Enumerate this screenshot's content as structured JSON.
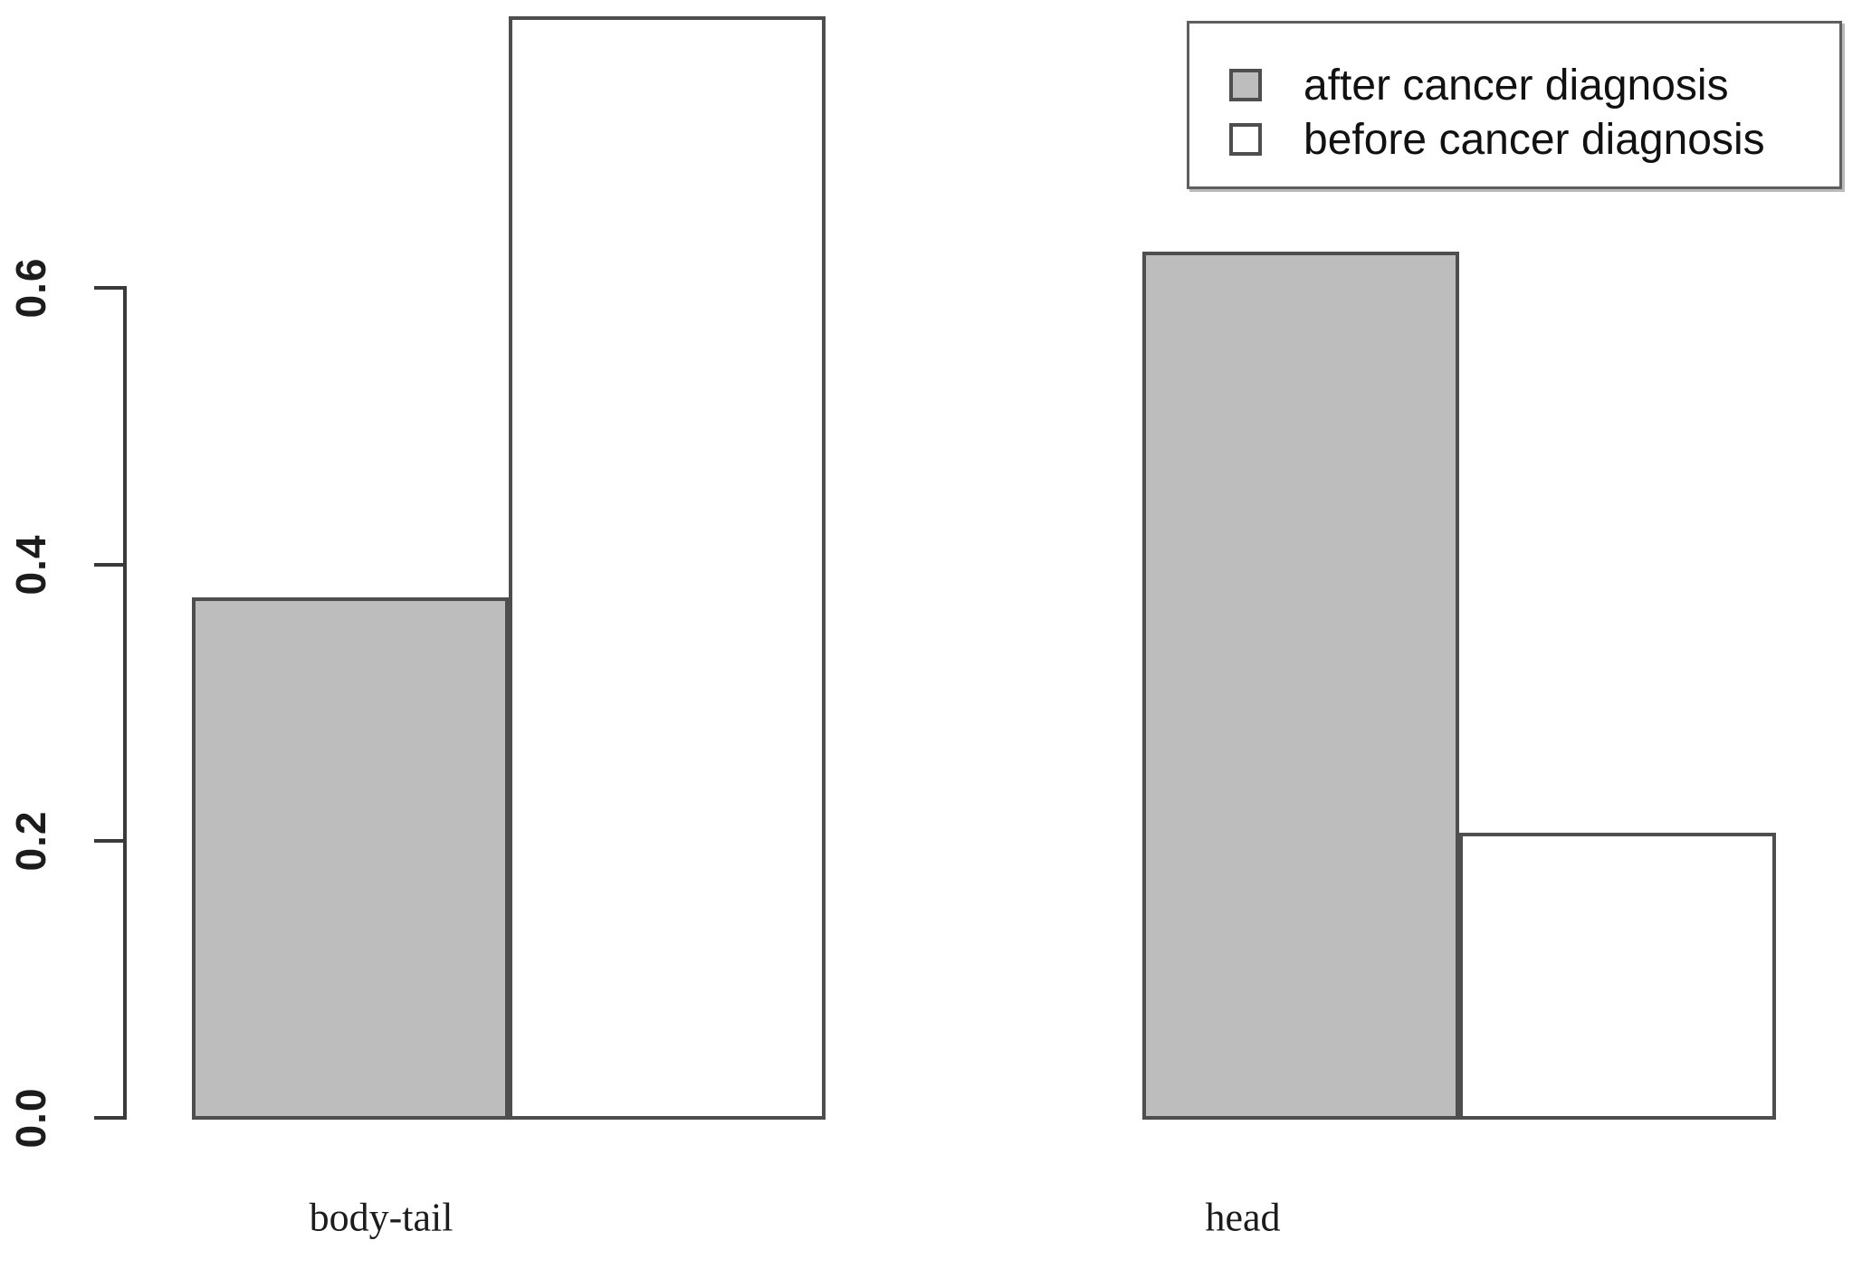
{
  "chart_data": {
    "type": "bar",
    "title": "",
    "xlabel": "",
    "ylabel": "",
    "categories": [
      "body-tail",
      "head"
    ],
    "series": [
      {
        "name": "after cancer diagnosis",
        "fill": "#bdbdbd",
        "values": [
          0.375,
          0.625
        ]
      },
      {
        "name": "before cancer diagnosis",
        "fill": "#ffffff",
        "values": [
          0.795,
          0.205
        ]
      }
    ],
    "yticks": [
      0.0,
      0.2,
      0.4,
      0.6
    ],
    "ytick_labels": [
      "0.0",
      "0.2",
      "0.4",
      "0.6"
    ],
    "ylim": [
      0,
      0.81
    ],
    "grid": false,
    "legend_position": "top-right",
    "bar_border_color": "#4e4e4e",
    "axis_color": "#3a3a3a",
    "bar_fill_gray": "#bdbdbd",
    "bar_fill_white": "#ffffff"
  }
}
